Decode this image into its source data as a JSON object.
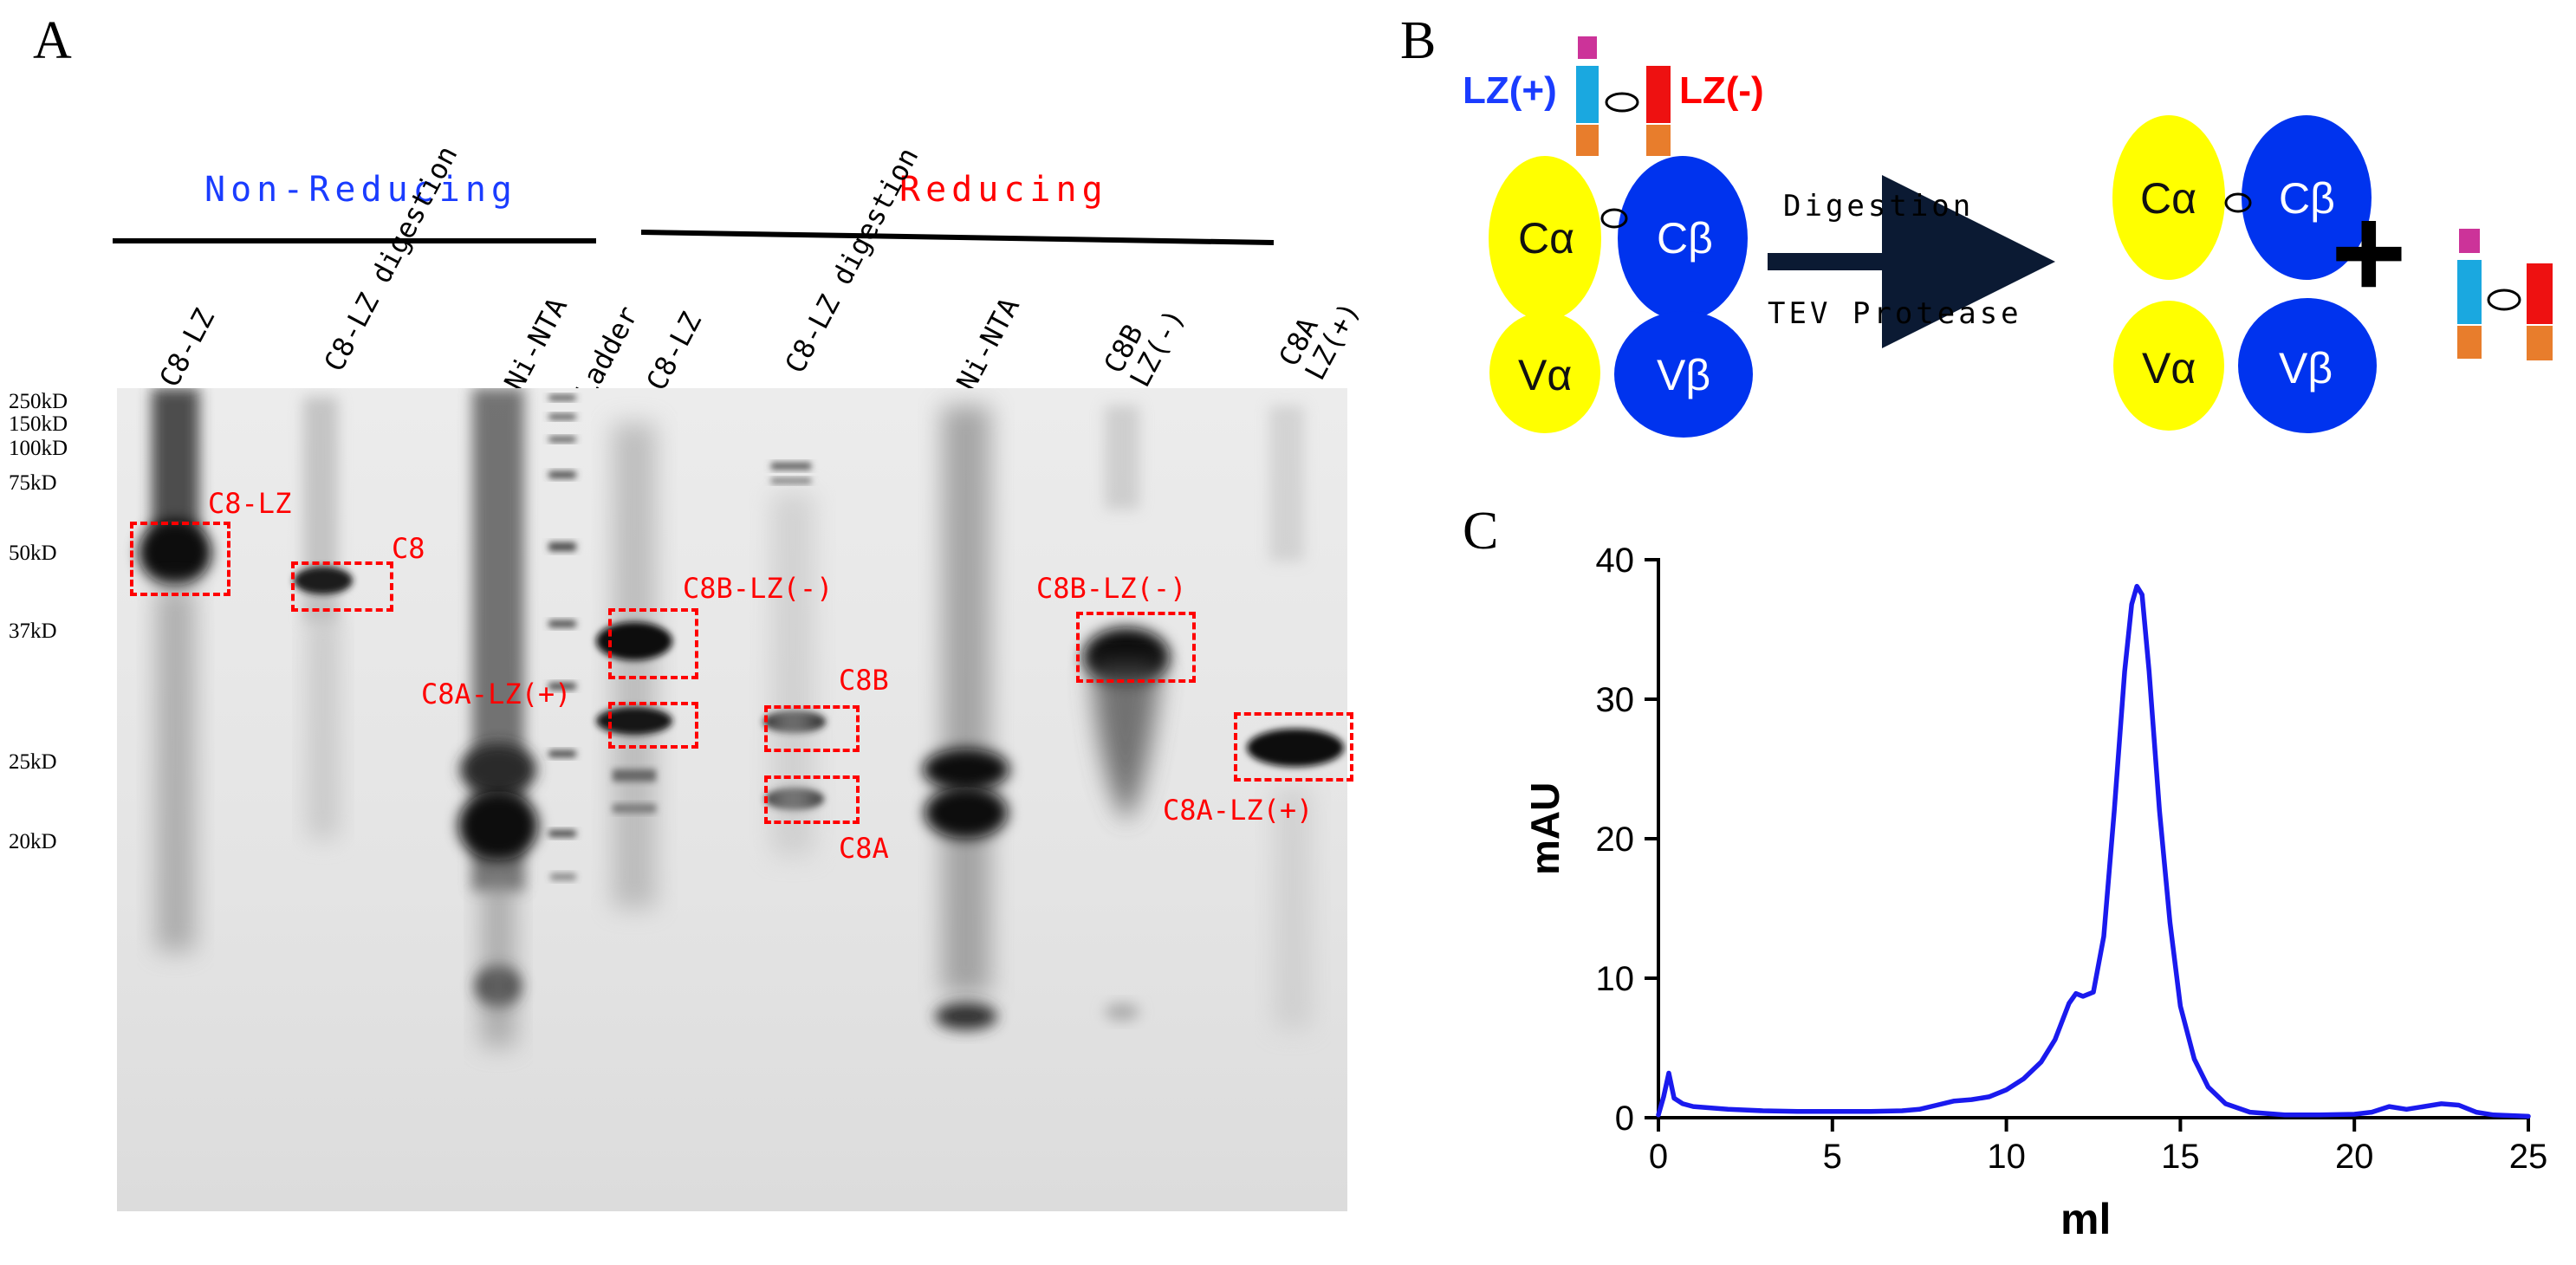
{
  "panels": {
    "a": "A",
    "b": "B",
    "c": "C"
  },
  "gel": {
    "groups": {
      "non_reducing": "Non-Reducing",
      "reducing": "Reducing"
    },
    "lanes": [
      "C8-LZ",
      "C8-LZ digestion",
      "Ni-NTA",
      "Ladder",
      "C8-LZ",
      "C8-LZ digestion",
      "Ni-NTA",
      "C8B LZ(-)",
      "C8A LZ(+)"
    ],
    "mw_markers": [
      "250kD",
      "150kD",
      "100kD",
      "75kD",
      "50kD",
      "37kD",
      "25kD",
      "20kD"
    ],
    "band_labels": {
      "c8_lz": "C8-LZ",
      "c8": "C8",
      "c8b_lz_minus_1": "C8B-LZ(-)",
      "c8a_lz_plus_1": "C8A-LZ(+)",
      "c8b": "C8B",
      "c8a": "C8A",
      "c8b_lz_minus_2": "C8B-LZ(-)",
      "c8a_lz_plus_2": "C8A-LZ(+)"
    },
    "colors": {
      "non_reducing": "#1a3cff",
      "reducing": "#ff0000",
      "boxes": "#ff0000"
    }
  },
  "schematic": {
    "lz_plus": "LZ(+)",
    "lz_minus": "LZ(-)",
    "c_alpha": "Cα",
    "c_beta": "Cβ",
    "v_alpha": "Vα",
    "v_beta": "Vβ",
    "arrow_top": "Digestion",
    "arrow_bottom": "TEV Protease",
    "plus": "+",
    "colors": {
      "alpha": "#ffff00",
      "beta": "#0033ee",
      "lz_plus_color": "#1a3cff",
      "lz_minus_color": "#ff0000",
      "tag_magenta": "#cc3399",
      "tag_cyan": "#1aa8e0",
      "tag_orange": "#e87d2c",
      "lz_red": "#ee1111"
    }
  },
  "chart_data": {
    "type": "line",
    "xlabel": "ml",
    "ylabel": "mAU",
    "xlim": [
      0,
      25
    ],
    "ylim": [
      0,
      40
    ],
    "xticks": [
      0,
      5,
      10,
      15,
      20,
      25
    ],
    "yticks": [
      0,
      10,
      20,
      30,
      40
    ],
    "grid": false,
    "legend": "none",
    "color": "#1a1aee",
    "series": [
      {
        "x": [
          0,
          0.15,
          0.3,
          0.45,
          0.7,
          1,
          2,
          3,
          4,
          5,
          6,
          7,
          7.5,
          8,
          8.5,
          9,
          9.5,
          10,
          10.5,
          11,
          11.4,
          11.8,
          12.0,
          12.2,
          12.5,
          12.8,
          13.1,
          13.4,
          13.6,
          13.75,
          13.9,
          14.1,
          14.4,
          14.7,
          15.0,
          15.4,
          15.8,
          16.3,
          17,
          18,
          19,
          20,
          20.5,
          21,
          21.5,
          22,
          22.5,
          23,
          23.5,
          24,
          25
        ],
        "y": [
          0.2,
          1.5,
          3.2,
          1.4,
          1.0,
          0.8,
          0.6,
          0.5,
          0.45,
          0.45,
          0.45,
          0.5,
          0.6,
          0.9,
          1.2,
          1.3,
          1.5,
          2.0,
          2.8,
          4.0,
          5.6,
          8.2,
          8.9,
          8.7,
          9.0,
          13.0,
          22.0,
          32.0,
          36.8,
          38.1,
          37.5,
          32.0,
          22.0,
          14.0,
          8.0,
          4.2,
          2.2,
          1.0,
          0.4,
          0.2,
          0.2,
          0.25,
          0.4,
          0.8,
          0.6,
          0.8,
          1.0,
          0.9,
          0.4,
          0.2,
          0.1
        ]
      }
    ]
  }
}
